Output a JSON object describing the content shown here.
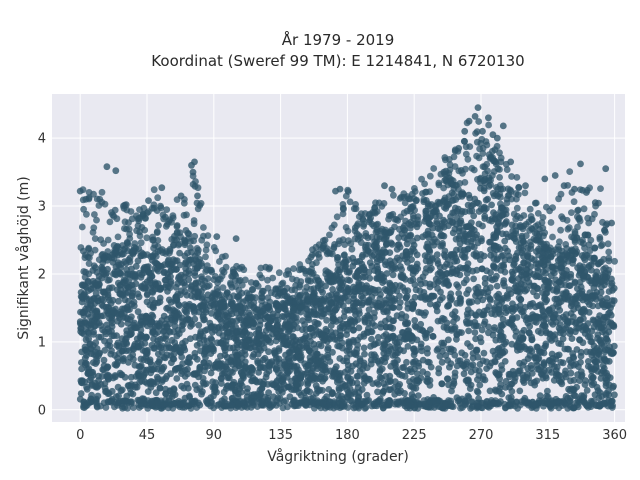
{
  "chart_data": {
    "type": "scatter",
    "title": "År 1979 - 2019",
    "subtitle": "Koordinat (Sweref 99 TM): E 1214841, N 6720130",
    "xlabel": "Vågriktning (grader)",
    "ylabel": "Signifikant våghöjd (m)",
    "xlim": [
      -19,
      367
    ],
    "ylim": [
      -0.18,
      4.65
    ],
    "xticks": [
      0,
      45,
      90,
      135,
      180,
      225,
      270,
      315,
      360
    ],
    "yticks": [
      0,
      1,
      2,
      3,
      4
    ],
    "grid": true,
    "legend": "none",
    "point_color": "#2f566b",
    "plot_background": "#e9e9f1",
    "envelope": {
      "x": [
        0,
        10,
        20,
        30,
        40,
        50,
        60,
        70,
        78,
        85,
        90,
        100,
        110,
        120,
        130,
        140,
        150,
        160,
        170,
        180,
        190,
        200,
        210,
        220,
        230,
        240,
        250,
        260,
        265,
        270,
        275,
        280,
        290,
        300,
        310,
        320,
        330,
        340,
        350,
        360
      ],
      "y_dense_max": [
        1.8,
        2.1,
        2.3,
        2.35,
        2.3,
        2.25,
        2.3,
        2.5,
        2.4,
        1.9,
        1.7,
        1.6,
        1.55,
        1.5,
        1.5,
        1.55,
        1.6,
        1.75,
        2.0,
        2.2,
        2.35,
        2.5,
        2.6,
        2.65,
        2.75,
        2.9,
        3.05,
        3.2,
        3.35,
        3.4,
        3.3,
        3.1,
        2.8,
        2.5,
        2.4,
        2.3,
        2.35,
        2.3,
        2.2,
        1.9
      ],
      "y_max": [
        3.2,
        3.6,
        3.0,
        3.05,
        3.0,
        3.25,
        2.9,
        3.3,
        3.65,
        2.6,
        2.5,
        2.2,
        2.1,
        2.1,
        2.1,
        2.05,
        2.2,
        2.45,
        2.7,
        3.25,
        3.0,
        3.1,
        3.3,
        3.25,
        3.4,
        3.6,
        3.85,
        4.25,
        4.45,
        4.35,
        4.2,
        3.95,
        3.6,
        3.2,
        3.0,
        3.0,
        3.6,
        3.2,
        3.55,
        2.4
      ]
    },
    "outliers": [
      [
        0,
        3.22
      ],
      [
        18,
        3.58
      ],
      [
        24,
        3.52
      ],
      [
        31,
        3.02
      ],
      [
        46,
        3.08
      ],
      [
        55,
        3.27
      ],
      [
        68,
        3.15
      ],
      [
        75,
        3.6
      ],
      [
        76,
        3.5
      ],
      [
        77,
        3.65
      ],
      [
        79,
        3.15
      ],
      [
        92,
        2.55
      ],
      [
        105,
        2.52
      ],
      [
        125,
        2.1
      ],
      [
        140,
        2.05
      ],
      [
        165,
        2.5
      ],
      [
        172,
        3.22
      ],
      [
        175,
        3.25
      ],
      [
        205,
        3.3
      ],
      [
        210,
        3.25
      ],
      [
        245,
        3.5
      ],
      [
        255,
        3.85
      ],
      [
        259,
        4.1
      ],
      [
        262,
        4.25
      ],
      [
        266,
        4.32
      ],
      [
        268,
        4.45
      ],
      [
        271,
        4.1
      ],
      [
        275,
        4.3
      ],
      [
        278,
        4.05
      ],
      [
        281,
        4.0
      ],
      [
        285,
        4.18
      ],
      [
        290,
        3.65
      ],
      [
        300,
        3.3
      ],
      [
        313,
        3.4
      ],
      [
        320,
        3.45
      ],
      [
        326,
        3.3
      ],
      [
        333,
        3.25
      ],
      [
        337,
        3.62
      ],
      [
        341,
        3.2
      ],
      [
        347,
        3.05
      ],
      [
        354,
        3.55
      ],
      [
        358,
        2.75
      ]
    ]
  }
}
